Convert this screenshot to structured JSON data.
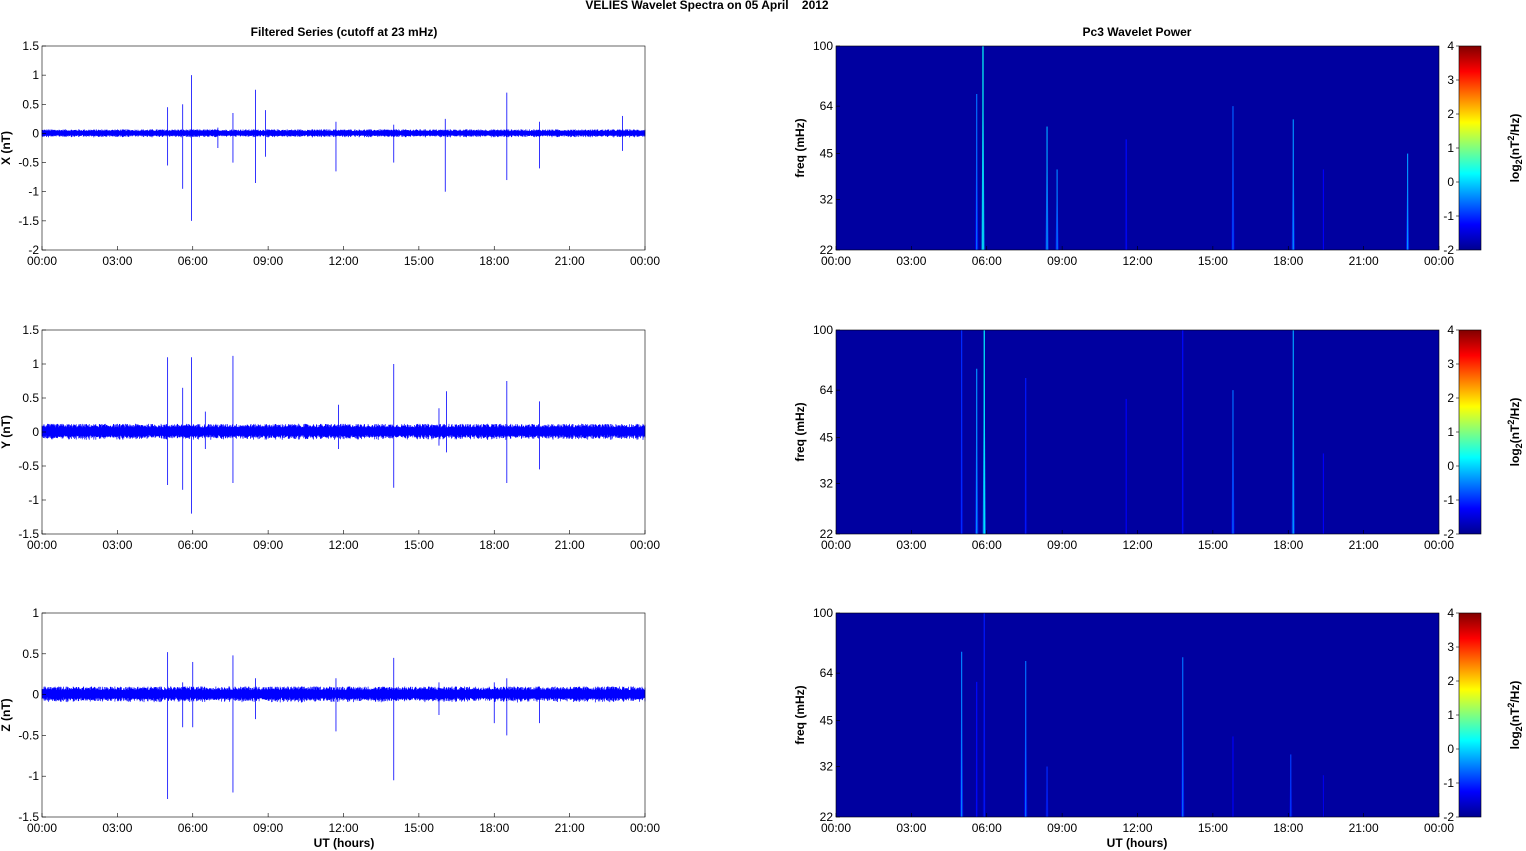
{
  "figure": {
    "suptitle": "VELIES Wavelet Spectra on 05 April    2012",
    "left_title": "Filtered Series (cutoff at 23 mHz)",
    "right_title": "Pc3 Wavelet Power",
    "xlabel": "UT (hours)",
    "spectrum_ylabel": "freq (mHz)",
    "colorbar_label_prefix": "log",
    "colorbar_label_sub": "2",
    "colorbar_label_mid": "(nT",
    "colorbar_label_sup": "2",
    "colorbar_label_suffix": "/Hz)"
  },
  "colors": {
    "trace": "#0000ff",
    "spectrum_background": "#0000a0"
  },
  "chart_data": [
    {
      "type": "line",
      "component": "X",
      "ylabel": "X (nT)",
      "x_ticks": [
        "00:00",
        "03:00",
        "06:00",
        "09:00",
        "12:00",
        "15:00",
        "18:00",
        "21:00",
        "00:00"
      ],
      "y_ticks": [
        "1.5",
        "1",
        "0.5",
        "0",
        "-0.5",
        "-1",
        "-1.5",
        "-2"
      ],
      "ylim": [
        -2,
        1.5
      ],
      "xlim_hours": [
        0,
        24
      ],
      "baseline_noise_amplitude": 0.07,
      "spikes": [
        {
          "t": 5.0,
          "hi": 0.45,
          "lo": -0.55
        },
        {
          "t": 5.6,
          "hi": 0.5,
          "lo": -0.95
        },
        {
          "t": 5.95,
          "hi": 1.0,
          "lo": -1.5
        },
        {
          "t": 7.0,
          "hi": 0.1,
          "lo": -0.25
        },
        {
          "t": 7.6,
          "hi": 0.35,
          "lo": -0.5
        },
        {
          "t": 8.5,
          "hi": 0.75,
          "lo": -0.85
        },
        {
          "t": 8.9,
          "hi": 0.4,
          "lo": -0.4
        },
        {
          "t": 11.7,
          "hi": 0.2,
          "lo": -0.65
        },
        {
          "t": 14.0,
          "hi": 0.15,
          "lo": -0.5
        },
        {
          "t": 16.05,
          "hi": 0.25,
          "lo": -1.0
        },
        {
          "t": 18.5,
          "hi": 0.7,
          "lo": -0.8
        },
        {
          "t": 19.8,
          "hi": 0.2,
          "lo": -0.6
        },
        {
          "t": 23.1,
          "hi": 0.3,
          "lo": -0.3
        }
      ]
    },
    {
      "type": "line",
      "component": "Y",
      "ylabel": "Y (nT)",
      "x_ticks": [
        "00:00",
        "03:00",
        "06:00",
        "09:00",
        "12:00",
        "15:00",
        "18:00",
        "21:00",
        "00:00"
      ],
      "y_ticks": [
        "1.5",
        "1",
        "0.5",
        "0",
        "-0.5",
        "-1",
        "-1.5"
      ],
      "ylim": [
        -1.5,
        1.5
      ],
      "xlim_hours": [
        0,
        24
      ],
      "baseline_noise_amplitude": 0.12,
      "spikes": [
        {
          "t": 5.0,
          "hi": 1.1,
          "lo": -0.78
        },
        {
          "t": 5.6,
          "hi": 0.65,
          "lo": -0.85
        },
        {
          "t": 5.95,
          "hi": 1.1,
          "lo": -1.2
        },
        {
          "t": 6.5,
          "hi": 0.3,
          "lo": -0.25
        },
        {
          "t": 7.6,
          "hi": 1.12,
          "lo": -0.75
        },
        {
          "t": 11.8,
          "hi": 0.4,
          "lo": -0.25
        },
        {
          "t": 14.0,
          "hi": 1.0,
          "lo": -0.82
        },
        {
          "t": 15.8,
          "hi": 0.35,
          "lo": -0.2
        },
        {
          "t": 16.1,
          "hi": 0.6,
          "lo": -0.3
        },
        {
          "t": 18.5,
          "hi": 0.75,
          "lo": -0.75
        },
        {
          "t": 19.8,
          "hi": 0.45,
          "lo": -0.55
        }
      ]
    },
    {
      "type": "line",
      "component": "Z",
      "ylabel": "Z (nT)",
      "x_ticks": [
        "00:00",
        "03:00",
        "06:00",
        "09:00",
        "12:00",
        "15:00",
        "18:00",
        "21:00",
        "00:00"
      ],
      "y_ticks": [
        "1",
        "0.5",
        "0",
        "-0.5",
        "-1",
        "-1.5"
      ],
      "ylim": [
        -1.5,
        1
      ],
      "xlim_hours": [
        0,
        24
      ],
      "baseline_noise_amplitude": 0.1,
      "spikes": [
        {
          "t": 5.0,
          "hi": 0.52,
          "lo": -1.28
        },
        {
          "t": 5.6,
          "hi": 0.15,
          "lo": -0.4
        },
        {
          "t": 6.0,
          "hi": 0.4,
          "lo": -0.4
        },
        {
          "t": 7.6,
          "hi": 0.48,
          "lo": -1.2
        },
        {
          "t": 8.5,
          "hi": 0.2,
          "lo": -0.3
        },
        {
          "t": 11.7,
          "hi": 0.2,
          "lo": -0.45
        },
        {
          "t": 14.0,
          "hi": 0.45,
          "lo": -1.05
        },
        {
          "t": 15.8,
          "hi": 0.15,
          "lo": -0.25
        },
        {
          "t": 18.0,
          "hi": 0.15,
          "lo": -0.35
        },
        {
          "t": 18.5,
          "hi": 0.2,
          "lo": -0.5
        },
        {
          "t": 19.8,
          "hi": 0.1,
          "lo": -0.35
        }
      ]
    },
    {
      "type": "heatmap",
      "component": "X",
      "ylabel": "freq (mHz)",
      "x_ticks": [
        "00:00",
        "03:00",
        "06:00",
        "09:00",
        "12:00",
        "15:00",
        "18:00",
        "21:00",
        "00:00"
      ],
      "y_ticks": [
        "100",
        "64",
        "45",
        "32",
        "22"
      ],
      "y_tick_values": [
        100,
        64,
        45,
        32,
        22
      ],
      "ylim": [
        22,
        100
      ],
      "y_scale": "log",
      "xlim_hours": [
        0,
        24
      ],
      "colorbar": {
        "ticks": [
          "4",
          "3",
          "2",
          "1",
          "0",
          "-1",
          "-2"
        ],
        "range": [
          -2,
          4
        ]
      },
      "streaks": [
        {
          "t": 5.6,
          "top": 70,
          "power": -0.6
        },
        {
          "t": 5.85,
          "top": 100,
          "power": 0.3
        },
        {
          "t": 8.4,
          "top": 55,
          "power": -0.3
        },
        {
          "t": 8.8,
          "top": 40,
          "power": -0.5
        },
        {
          "t": 11.55,
          "top": 50,
          "power": -1.2
        },
        {
          "t": 15.8,
          "top": 64,
          "power": -0.7
        },
        {
          "t": 18.2,
          "top": 58,
          "power": -0.4
        },
        {
          "t": 19.4,
          "top": 40,
          "power": -1.3
        },
        {
          "t": 22.75,
          "top": 45,
          "power": -0.4
        }
      ]
    },
    {
      "type": "heatmap",
      "component": "Y",
      "ylabel": "freq (mHz)",
      "x_ticks": [
        "00:00",
        "03:00",
        "06:00",
        "09:00",
        "12:00",
        "15:00",
        "18:00",
        "21:00",
        "00:00"
      ],
      "y_ticks": [
        "100",
        "64",
        "45",
        "32",
        "22"
      ],
      "y_tick_values": [
        100,
        64,
        45,
        32,
        22
      ],
      "ylim": [
        22,
        100
      ],
      "y_scale": "log",
      "xlim_hours": [
        0,
        24
      ],
      "colorbar": {
        "ticks": [
          "4",
          "3",
          "2",
          "1",
          "0",
          "-1",
          "-2"
        ],
        "range": [
          -2,
          4
        ]
      },
      "streaks": [
        {
          "t": 5.0,
          "top": 100,
          "power": -1.0
        },
        {
          "t": 5.6,
          "top": 75,
          "power": -0.4
        },
        {
          "t": 5.9,
          "top": 100,
          "power": 0.2
        },
        {
          "t": 7.55,
          "top": 70,
          "power": -1.1
        },
        {
          "t": 11.55,
          "top": 60,
          "power": -1.3
        },
        {
          "t": 13.8,
          "top": 100,
          "power": -1.2
        },
        {
          "t": 15.8,
          "top": 64,
          "power": -0.6
        },
        {
          "t": 18.2,
          "top": 100,
          "power": -0.3
        },
        {
          "t": 19.4,
          "top": 40,
          "power": -1.3
        }
      ]
    },
    {
      "type": "heatmap",
      "component": "Z",
      "ylabel": "freq (mHz)",
      "x_ticks": [
        "00:00",
        "03:00",
        "06:00",
        "09:00",
        "12:00",
        "15:00",
        "18:00",
        "21:00",
        "00:00"
      ],
      "y_ticks": [
        "100",
        "64",
        "45",
        "32",
        "22"
      ],
      "y_tick_values": [
        100,
        64,
        45,
        32,
        22
      ],
      "ylim": [
        22,
        100
      ],
      "y_scale": "log",
      "xlim_hours": [
        0,
        24
      ],
      "colorbar": {
        "ticks": [
          "4",
          "3",
          "2",
          "1",
          "0",
          "-1",
          "-2"
        ],
        "range": [
          -2,
          4
        ]
      },
      "streaks": [
        {
          "t": 5.0,
          "top": 75,
          "power": -0.5
        },
        {
          "t": 5.6,
          "top": 60,
          "power": -1.2
        },
        {
          "t": 5.9,
          "top": 100,
          "power": -1.1
        },
        {
          "t": 7.55,
          "top": 70,
          "power": -0.6
        },
        {
          "t": 8.4,
          "top": 32,
          "power": -1.0
        },
        {
          "t": 13.8,
          "top": 72,
          "power": -0.6
        },
        {
          "t": 15.8,
          "top": 40,
          "power": -1.3
        },
        {
          "t": 18.1,
          "top": 35,
          "power": -0.9
        },
        {
          "t": 19.4,
          "top": 30,
          "power": -1.4
        }
      ]
    }
  ]
}
